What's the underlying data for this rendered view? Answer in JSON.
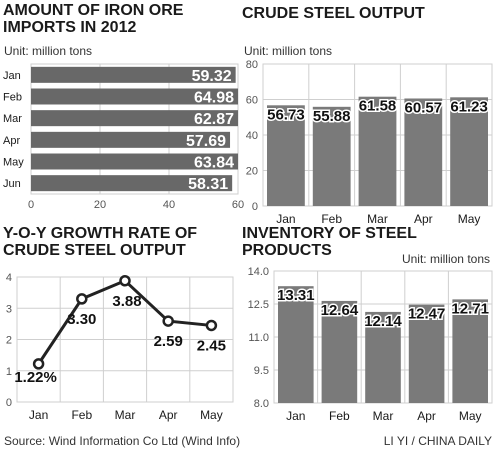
{
  "colors": {
    "bar_dark": "#686868",
    "bar_light": "#7a7a7a",
    "label_dark": "#ffffff",
    "text": "#1a1a1a",
    "grid": "#cfcfcf",
    "line": "#222222"
  },
  "footer": {
    "source": "Source: Wind Information Co Ltd (Wind Info)",
    "credit": "LI YI / CHINA DAILY"
  },
  "chart_data": [
    {
      "type": "bar",
      "orientation": "horizontal",
      "title_lines": [
        "AMOUNT OF IRON ORE",
        "IMPORTS IN 2012"
      ],
      "unit": "Unit: million tons",
      "categories": [
        "Jan",
        "Feb",
        "Mar",
        "Apr",
        "May",
        "Jun"
      ],
      "values": [
        59.32,
        64.98,
        62.87,
        57.69,
        63.84,
        58.31
      ],
      "value_labels": [
        "59.32",
        "64.98",
        "62.87",
        "57.69",
        "63.84",
        "58.31"
      ],
      "xlim": [
        0,
        60
      ],
      "ticks": [
        "0",
        "20",
        "40",
        "60"
      ],
      "grid": true
    },
    {
      "type": "bar",
      "title_lines": [
        "CRUDE STEEL OUTPUT"
      ],
      "unit": "Unit: million tons",
      "categories": [
        "Jan",
        "Feb",
        "Mar",
        "Apr",
        "May"
      ],
      "values": [
        56.73,
        55.88,
        61.58,
        60.57,
        61.23
      ],
      "value_labels": [
        "56.73",
        "55.88",
        "61.58",
        "60.57",
        "61.23"
      ],
      "ylim": [
        0,
        80
      ],
      "ticks": [
        "0",
        "20",
        "40",
        "60",
        "80"
      ],
      "grid": true
    },
    {
      "type": "line",
      "title_lines": [
        "Y-O-Y GROWTH RATE OF",
        "CRUDE STEEL OUTPUT"
      ],
      "categories": [
        "Jan",
        "Feb",
        "Mar",
        "Apr",
        "May"
      ],
      "values": [
        1.22,
        3.3,
        3.88,
        2.59,
        2.45
      ],
      "value_labels": [
        "1.22%",
        "3.30",
        "3.88",
        "2.59",
        "2.45"
      ],
      "ylim": [
        0,
        4
      ],
      "ticks": [
        "0",
        "1",
        "2",
        "3",
        "4"
      ],
      "grid": true
    },
    {
      "type": "bar",
      "title_lines": [
        "INVENTORY OF STEEL",
        "PRODUCTS"
      ],
      "unit": "Unit: million tons",
      "categories": [
        "Jan",
        "Feb",
        "Mar",
        "Apr",
        "May"
      ],
      "values": [
        13.31,
        12.64,
        12.14,
        12.47,
        12.71
      ],
      "value_labels": [
        "13.31",
        "12.64",
        "12.14",
        "12.47",
        "12.71"
      ],
      "ylim": [
        8.0,
        14.0
      ],
      "ticks": [
        "8.0",
        "9.5",
        "11.0",
        "12.5",
        "14.0"
      ],
      "grid": true
    }
  ]
}
